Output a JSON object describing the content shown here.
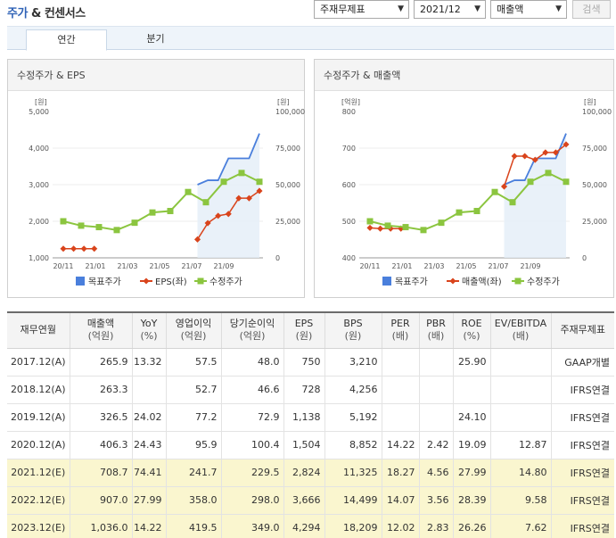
{
  "header": {
    "title_part1": "주가",
    "title_sep": " & ",
    "title_part2": "컨센서스"
  },
  "filters": {
    "basis": "주재무제표",
    "period": "2021/12",
    "metric": "매출액",
    "search_label": "검색"
  },
  "tabs": [
    {
      "label": "연간",
      "active": true
    },
    {
      "label": "분기",
      "active": false
    }
  ],
  "charts": [
    {
      "title": "수정주가 & EPS",
      "left_unit": "[원]",
      "right_unit": "[원]",
      "left_ticks": [
        "5,000",
        "4,000",
        "3,000",
        "2,000",
        "1,000"
      ],
      "right_ticks": [
        "100,000",
        "75,000",
        "50,000",
        "25,000",
        "0"
      ],
      "left_min": 1000,
      "left_max": 5000,
      "x_ticks": [
        "20/11",
        "21/01",
        "21/03",
        "21/05",
        "21/07",
        "21/09"
      ],
      "legend": [
        "목표주가",
        "EPS(좌)",
        "수정주가"
      ],
      "target_price": [
        null,
        null,
        null,
        null,
        null,
        null,
        null,
        null,
        null,
        null,
        null,
        null,
        null,
        50000,
        53000,
        53000,
        68000,
        68000,
        68000,
        85000
      ],
      "eps": [
        1250,
        1250,
        1250,
        1250,
        null,
        null,
        null,
        null,
        null,
        null,
        null,
        null,
        null,
        1504,
        1950,
        2150,
        2200,
        2630,
        2630,
        2830
      ],
      "price": [
        25000,
        22000,
        21000,
        19000,
        24000,
        31000,
        32000,
        45000,
        38000,
        52000,
        58000,
        52000
      ]
    },
    {
      "title": "수정주가 & 매출액",
      "left_unit": "[억원]",
      "right_unit": "[원]",
      "left_ticks": [
        "800",
        "700",
        "600",
        "500",
        "400"
      ],
      "right_ticks": [
        "100,000",
        "75,000",
        "50,000",
        "25,000",
        "0"
      ],
      "left_min": 400,
      "left_max": 800,
      "x_ticks": [
        "20/11",
        "21/01",
        "21/03",
        "21/05",
        "21/07",
        "21/09"
      ],
      "legend": [
        "목표주가",
        "매출액(좌)",
        "수정주가"
      ],
      "target_price": [
        null,
        null,
        null,
        null,
        null,
        null,
        null,
        null,
        null,
        null,
        null,
        null,
        null,
        50000,
        53000,
        53000,
        68000,
        68000,
        68000,
        85000
      ],
      "sales": [
        482,
        480,
        480,
        480,
        null,
        null,
        null,
        null,
        null,
        null,
        null,
        null,
        null,
        595,
        678,
        678,
        668,
        688,
        688,
        710
      ],
      "price": [
        25000,
        22000,
        21000,
        19000,
        24000,
        31000,
        32000,
        45000,
        38000,
        52000,
        58000,
        52000
      ]
    }
  ],
  "table": {
    "headers": [
      [
        "재무연월",
        ""
      ],
      [
        "매출액",
        "(억원)"
      ],
      [
        "YoY",
        "(%)"
      ],
      [
        "영업이익",
        "(억원)"
      ],
      [
        "당기순이익",
        "(억원)"
      ],
      [
        "EPS",
        "(원)"
      ],
      [
        "BPS",
        "(원)"
      ],
      [
        "PER",
        "(배)"
      ],
      [
        "PBR",
        "(배)"
      ],
      [
        "ROE",
        "(%)"
      ],
      [
        "EV/EBITDA",
        "(배)"
      ],
      [
        "주재무제표",
        ""
      ]
    ],
    "rows": [
      [
        "2017.12(A)",
        "265.9",
        "13.32",
        "57.5",
        "48.0",
        "750",
        "3,210",
        "",
        "",
        "25.90",
        "",
        "GAAP개별"
      ],
      [
        "2018.12(A)",
        "263.3",
        "",
        "52.7",
        "46.6",
        "728",
        "4,256",
        "",
        "",
        "",
        "",
        "IFRS연결"
      ],
      [
        "2019.12(A)",
        "326.5",
        "24.02",
        "77.2",
        "72.9",
        "1,138",
        "5,192",
        "",
        "",
        "24.10",
        "",
        "IFRS연결"
      ],
      [
        "2020.12(A)",
        "406.3",
        "24.43",
        "95.9",
        "100.4",
        "1,504",
        "8,852",
        "14.22",
        "2.42",
        "19.09",
        "12.87",
        "IFRS연결"
      ],
      [
        "2021.12(E)",
        "708.7",
        "74.41",
        "241.7",
        "229.5",
        "2,824",
        "11,325",
        "18.27",
        "4.56",
        "27.99",
        "14.80",
        "IFRS연결"
      ],
      [
        "2022.12(E)",
        "907.0",
        "27.99",
        "358.0",
        "298.0",
        "3,666",
        "14,499",
        "14.07",
        "3.56",
        "28.39",
        "9.58",
        "IFRS연결"
      ],
      [
        "2023.12(E)",
        "1,036.0",
        "14.22",
        "419.5",
        "349.0",
        "4,294",
        "18,209",
        "12.02",
        "2.83",
        "26.26",
        "7.62",
        "IFRS연결"
      ]
    ],
    "estimate_rows": [
      4,
      5,
      6
    ]
  },
  "colors": {
    "target": "#4a7fdc",
    "target_fill": "#e3edf8",
    "eps": "#d9441c",
    "price": "#8bc53f",
    "title_blue": "#2f62b6"
  }
}
